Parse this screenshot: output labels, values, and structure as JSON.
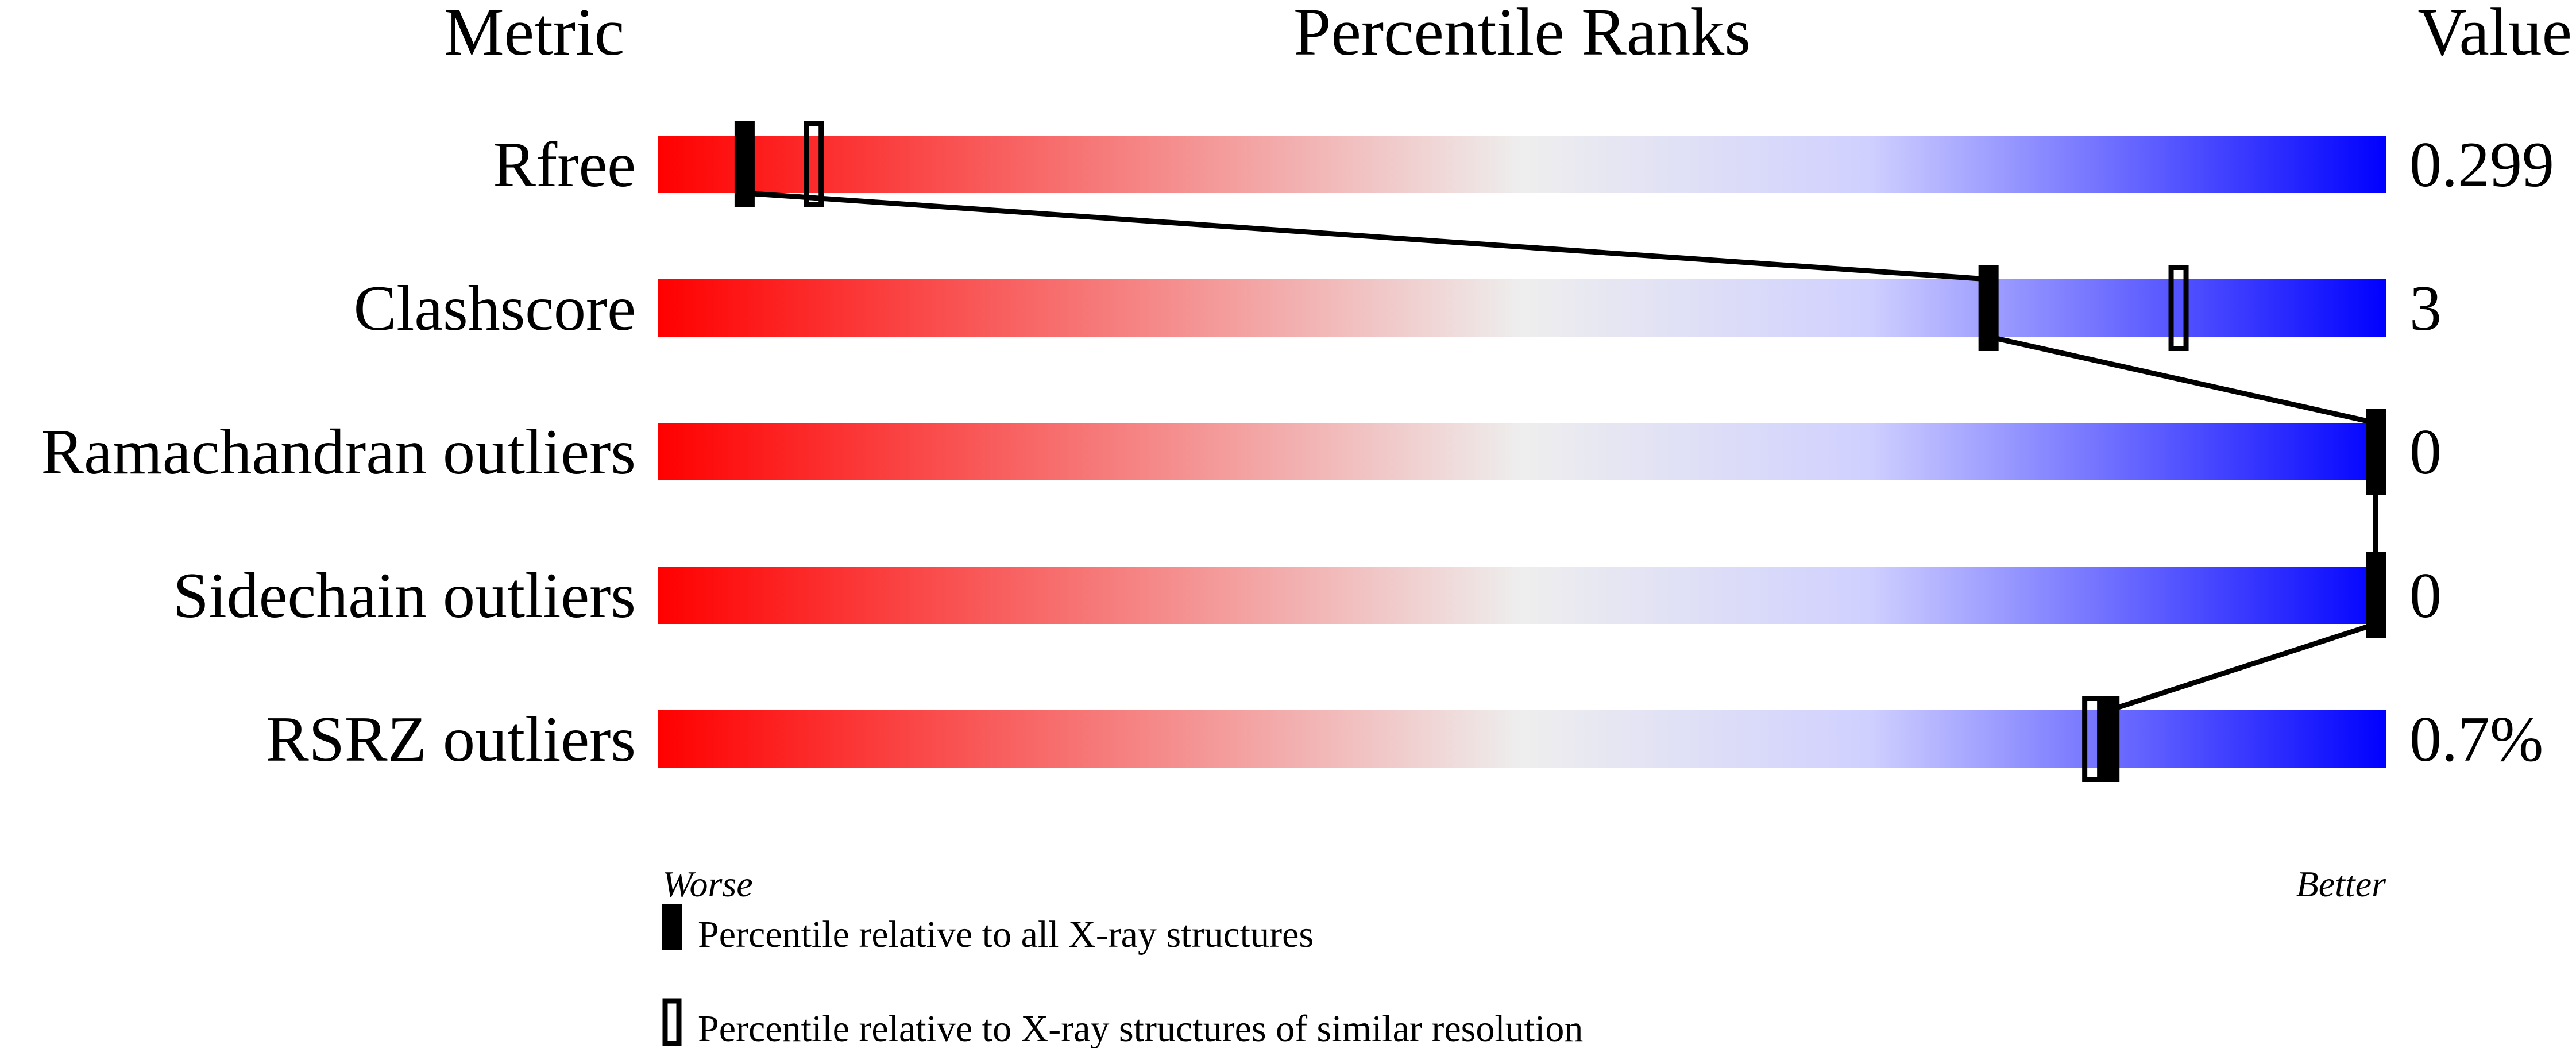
{
  "chart_data": {
    "type": "percentile-ranks",
    "headers": {
      "metric": "Metric",
      "ranks": "Percentile Ranks",
      "value": "Value"
    },
    "axis": {
      "left_label": "Worse",
      "right_label": "Better",
      "range": [
        0,
        100
      ]
    },
    "rows": [
      {
        "metric": "Rfree",
        "value": "0.299",
        "percentile_all": 5,
        "percentile_similar": 9
      },
      {
        "metric": "Clashscore",
        "value": "3",
        "percentile_all": 77,
        "percentile_similar": 88
      },
      {
        "metric": "Ramachandran outliers",
        "value": "0",
        "percentile_all": 100,
        "percentile_similar": 100
      },
      {
        "metric": "Sidechain outliers",
        "value": "0",
        "percentile_all": 100,
        "percentile_similar": 100
      },
      {
        "metric": "RSRZ outliers",
        "value": "0.7%",
        "percentile_all": 84,
        "percentile_similar": 83
      }
    ],
    "legend": [
      {
        "marker": "filled",
        "label": "Percentile relative to all X-ray structures"
      },
      {
        "marker": "open",
        "label": "Percentile relative to X-ray structures of similar resolution"
      }
    ],
    "colors": {
      "worse": "#ff0000",
      "middle": "#eeeeee",
      "light_blue": "#d0d0ff",
      "better": "#0000ff",
      "marker": "#000000"
    }
  }
}
